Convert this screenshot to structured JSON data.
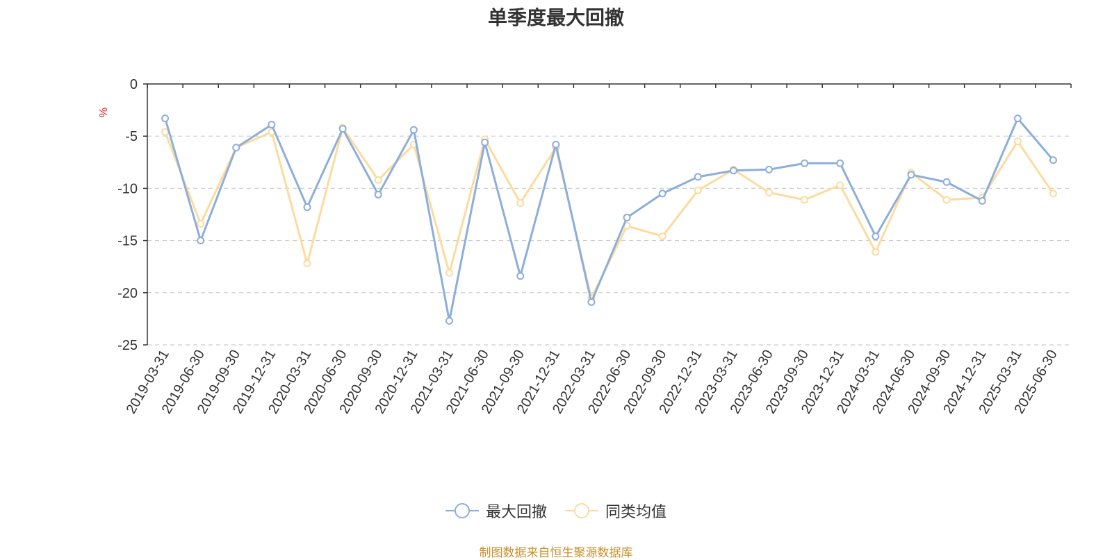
{
  "chart_data": {
    "type": "line",
    "title": "单季度最大回撤",
    "ylabel": "%",
    "ylim": [
      -25,
      0
    ],
    "yticks": [
      0,
      -5,
      -10,
      -15,
      -20,
      -25
    ],
    "grid": true,
    "legend_position": "bottom",
    "categories": [
      "2019-03-31",
      "2019-06-30",
      "2019-09-30",
      "2019-12-31",
      "2020-03-31",
      "2020-06-30",
      "2020-09-30",
      "2020-12-31",
      "2021-03-31",
      "2021-06-30",
      "2021-09-30",
      "2021-12-31",
      "2022-03-31",
      "2022-06-30",
      "2022-09-30",
      "2022-12-31",
      "2023-03-31",
      "2023-06-30",
      "2023-09-30",
      "2023-12-31",
      "2024-03-31",
      "2024-06-30",
      "2024-09-30",
      "2024-12-31",
      "2025-03-31",
      "2025-06-30"
    ],
    "series": [
      {
        "name": "最大回撤",
        "color": "#8caedb",
        "values": [
          -3.3,
          -15.0,
          -6.1,
          -3.9,
          -11.8,
          -4.3,
          -10.6,
          -4.4,
          -22.7,
          -5.6,
          -18.4,
          -5.8,
          -20.9,
          -12.8,
          -10.5,
          -8.9,
          -8.3,
          -8.2,
          -7.6,
          -7.6,
          -14.6,
          -8.7,
          -9.4,
          -11.2,
          -3.3,
          -7.3
        ]
      },
      {
        "name": "同类均值",
        "color": "#fddb9e",
        "values": [
          -4.6,
          -13.4,
          -6.1,
          -4.6,
          -17.2,
          -4.2,
          -9.2,
          -5.8,
          -18.1,
          -5.3,
          -11.4,
          -6.1,
          -20.5,
          -13.6,
          -14.6,
          -10.2,
          -8.2,
          -10.4,
          -11.1,
          -9.7,
          -16.1,
          -8.5,
          -11.1,
          -10.9,
          -5.5,
          -10.5
        ]
      }
    ]
  },
  "source_text": "制图数据来自恒生聚源数据库"
}
